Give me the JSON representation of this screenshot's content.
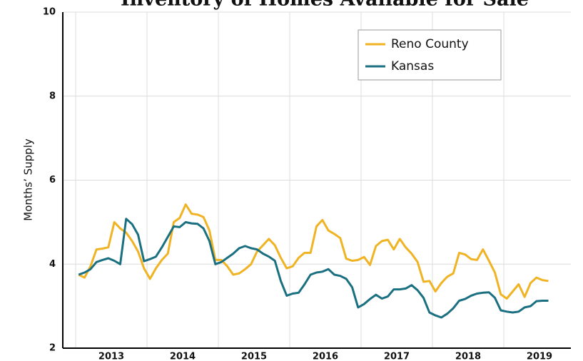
{
  "chart_data": {
    "type": "line",
    "title": "Inventory of Homes Available for Sale",
    "y_label": "Months’ Supply",
    "x": [
      2013.042,
      2013.125,
      2013.208,
      2013.292,
      2013.375,
      2013.458,
      2013.542,
      2013.625,
      2013.708,
      2013.792,
      2013.875,
      2013.958,
      2014.042,
      2014.125,
      2014.208,
      2014.292,
      2014.375,
      2014.458,
      2014.542,
      2014.625,
      2014.708,
      2014.792,
      2014.875,
      2014.958,
      2015.042,
      2015.125,
      2015.208,
      2015.292,
      2015.375,
      2015.458,
      2015.542,
      2015.625,
      2015.708,
      2015.792,
      2015.875,
      2015.958,
      2016.042,
      2016.125,
      2016.208,
      2016.292,
      2016.375,
      2016.458,
      2016.542,
      2016.625,
      2016.708,
      2016.792,
      2016.875,
      2016.958,
      2017.042,
      2017.125,
      2017.208,
      2017.292,
      2017.375,
      2017.458,
      2017.542,
      2017.625,
      2017.708,
      2017.792,
      2017.875,
      2017.958,
      2018.042,
      2018.125,
      2018.208,
      2018.292,
      2018.375,
      2018.458,
      2018.542,
      2018.625,
      2018.708,
      2018.792,
      2018.875,
      2018.958,
      2019.042,
      2019.125,
      2019.208,
      2019.292,
      2019.375,
      2019.458,
      2019.542,
      2019.625
    ],
    "series": [
      {
        "name": "Reno County",
        "color": "#f0b323",
        "values": [
          3.75,
          3.68,
          3.95,
          4.35,
          4.37,
          4.4,
          5.0,
          4.85,
          4.75,
          4.55,
          4.3,
          3.9,
          3.65,
          3.9,
          4.1,
          4.25,
          5.0,
          5.1,
          5.42,
          5.2,
          5.18,
          5.12,
          4.8,
          4.1,
          4.1,
          3.95,
          3.75,
          3.78,
          3.88,
          4.0,
          4.3,
          4.45,
          4.6,
          4.45,
          4.15,
          3.9,
          3.95,
          4.15,
          4.27,
          4.27,
          4.9,
          5.05,
          4.8,
          4.72,
          4.62,
          4.13,
          4.08,
          4.1,
          4.17,
          3.98,
          4.43,
          4.55,
          4.58,
          4.35,
          4.6,
          4.4,
          4.25,
          4.05,
          3.58,
          3.6,
          3.35,
          3.55,
          3.7,
          3.78,
          4.27,
          4.23,
          4.12,
          4.1,
          4.35,
          4.08,
          3.8,
          3.28,
          3.18,
          3.35,
          3.52,
          3.22,
          3.55,
          3.68,
          3.62,
          3.6
        ]
      },
      {
        "name": "Kansas",
        "color": "#1a7080",
        "values": [
          3.75,
          3.8,
          3.88,
          4.05,
          4.1,
          4.14,
          4.08,
          4.0,
          5.08,
          4.95,
          4.7,
          4.07,
          4.12,
          4.18,
          4.4,
          4.65,
          4.9,
          4.88,
          5.0,
          4.97,
          4.96,
          4.85,
          4.55,
          4.0,
          4.05,
          4.15,
          4.25,
          4.38,
          4.43,
          4.38,
          4.35,
          4.25,
          4.18,
          4.08,
          3.6,
          3.25,
          3.3,
          3.32,
          3.52,
          3.75,
          3.8,
          3.82,
          3.88,
          3.75,
          3.72,
          3.65,
          3.45,
          2.97,
          3.05,
          3.17,
          3.27,
          3.18,
          3.23,
          3.4,
          3.4,
          3.42,
          3.5,
          3.38,
          3.2,
          2.85,
          2.78,
          2.73,
          2.82,
          2.95,
          3.13,
          3.17,
          3.25,
          3.3,
          3.32,
          3.33,
          3.2,
          2.9,
          2.87,
          2.85,
          2.87,
          2.97,
          3.0,
          3.12,
          3.13,
          3.13
        ]
      }
    ],
    "xlim": [
      2012.82,
      2019.94
    ],
    "xticks": [
      2013,
      2014,
      2015,
      2016,
      2017,
      2018,
      2019
    ],
    "ylim": [
      2,
      10
    ],
    "yticks": [
      2,
      4,
      6,
      8,
      10
    ],
    "grid": true,
    "legend": "upper right"
  }
}
